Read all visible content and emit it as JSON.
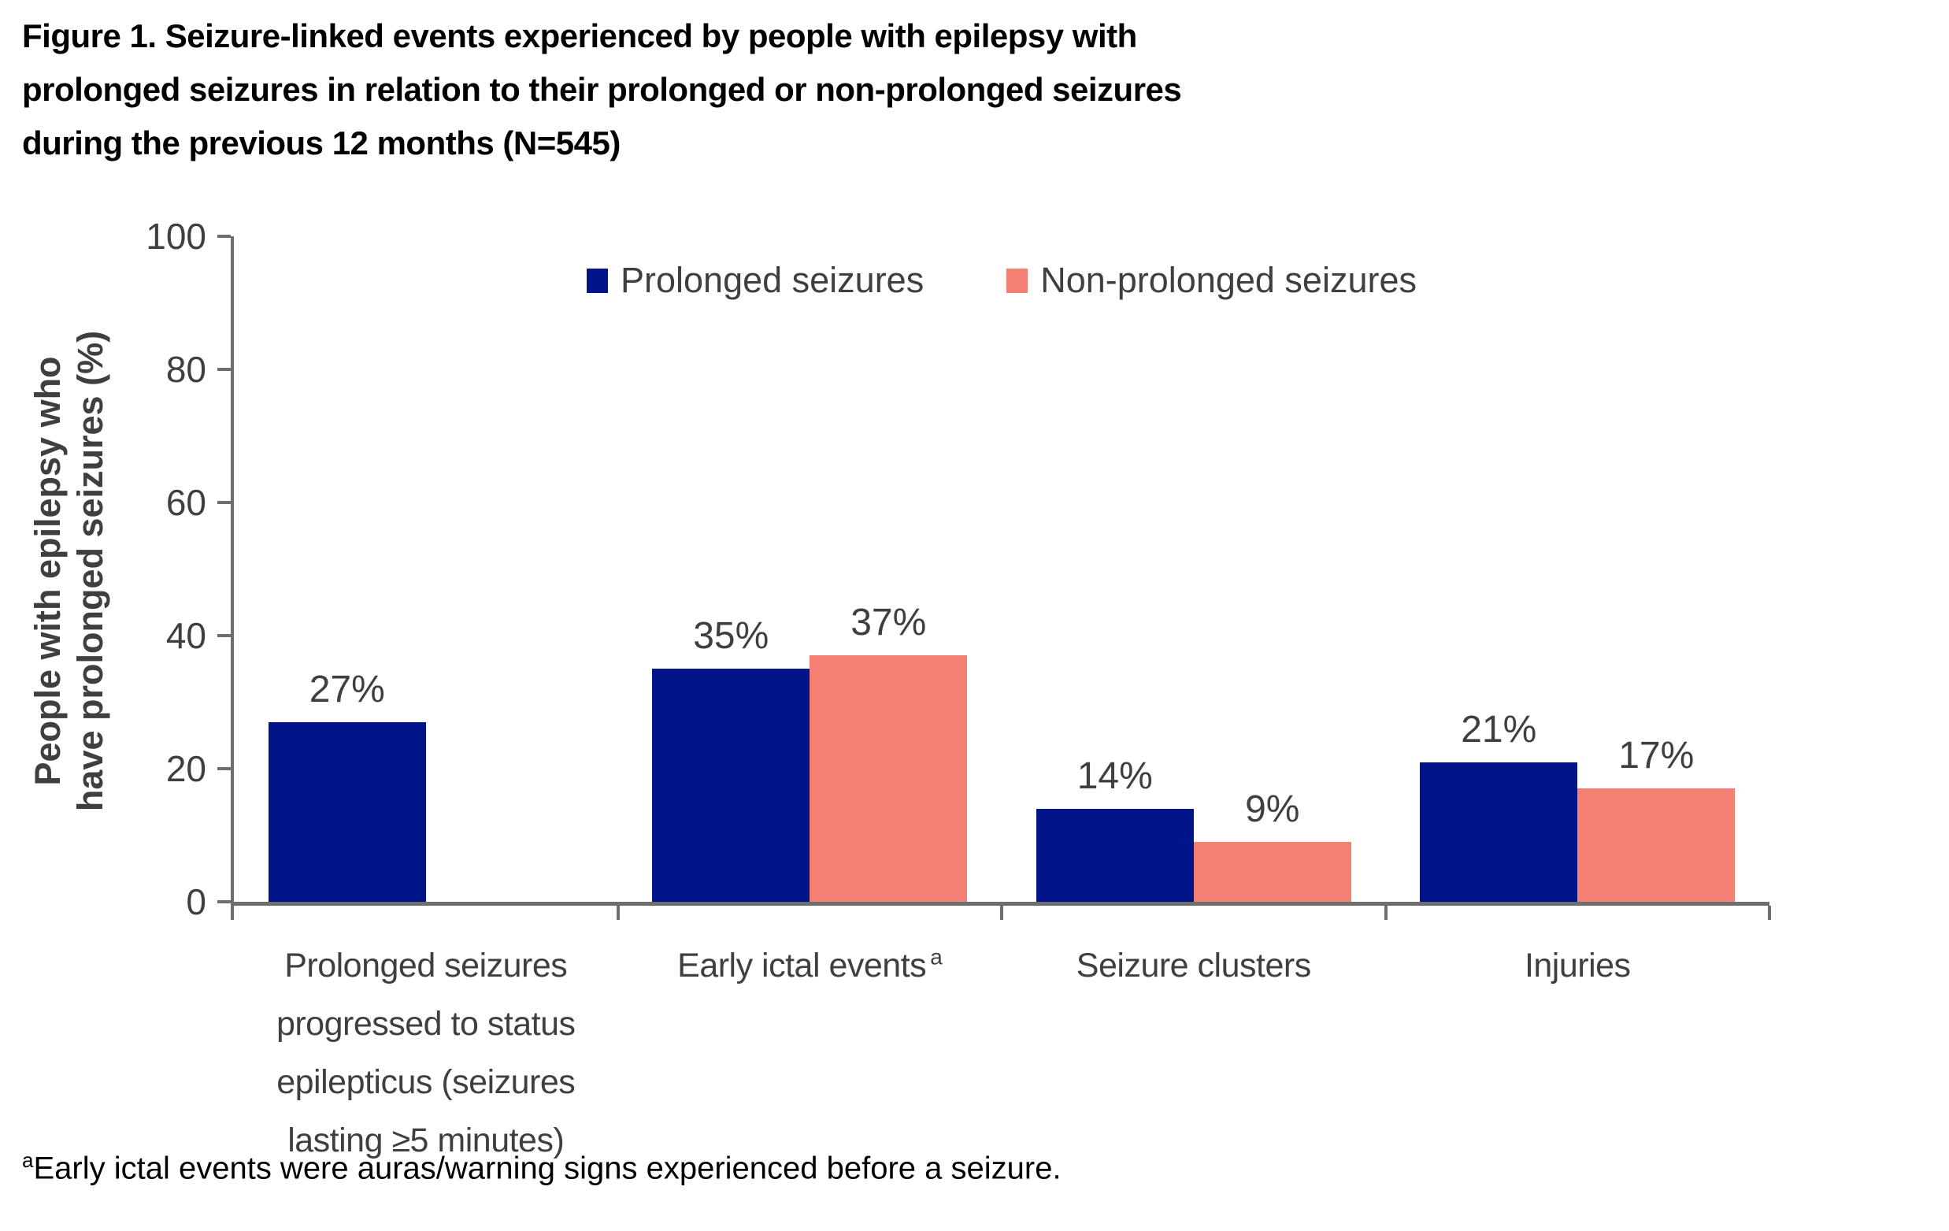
{
  "figure": {
    "title": "Figure 1. Seizure-linked events experienced by people with epilepsy with prolonged seizures in relation to their prolonged or non-prolonged seizures during the previous 12 months (N=545)",
    "footnote_marker": "a",
    "footnote_text": "Early ictal events were auras/warning signs experienced before a seizure."
  },
  "colors": {
    "prolonged_series": "#021489",
    "non_prolonged_series": "#F38073",
    "axis": "#6E6E6E",
    "text": "#3F3F3F",
    "title_text": "#000000"
  },
  "chart_data": {
    "type": "bar",
    "title": "",
    "categories": [
      "Prolonged seizures progressed to status epilepticus (seizures lasting ≥5 minutes)",
      "Early ictal events",
      "Seizure clusters",
      "Injuries"
    ],
    "category_superscripts": [
      "",
      "a",
      "",
      ""
    ],
    "series": [
      {
        "name": "Prolonged seizures",
        "color": "#021489",
        "values": [
          27,
          35,
          14,
          21
        ]
      },
      {
        "name": "Non-prolonged seizures",
        "color": "#F38073",
        "values": [
          null,
          37,
          9,
          17
        ]
      }
    ],
    "value_suffix": "%",
    "xlabel": "",
    "ylabel": "People with epilepsy who have prolonged seizures (%)",
    "ylabel_lines": [
      "People with epilepsy who",
      "have prolonged seizures (%)"
    ],
    "yticks": [
      0,
      20,
      40,
      60,
      80,
      100
    ],
    "ylim": [
      0,
      100
    ],
    "grid": false,
    "legend_position": "top-center"
  }
}
